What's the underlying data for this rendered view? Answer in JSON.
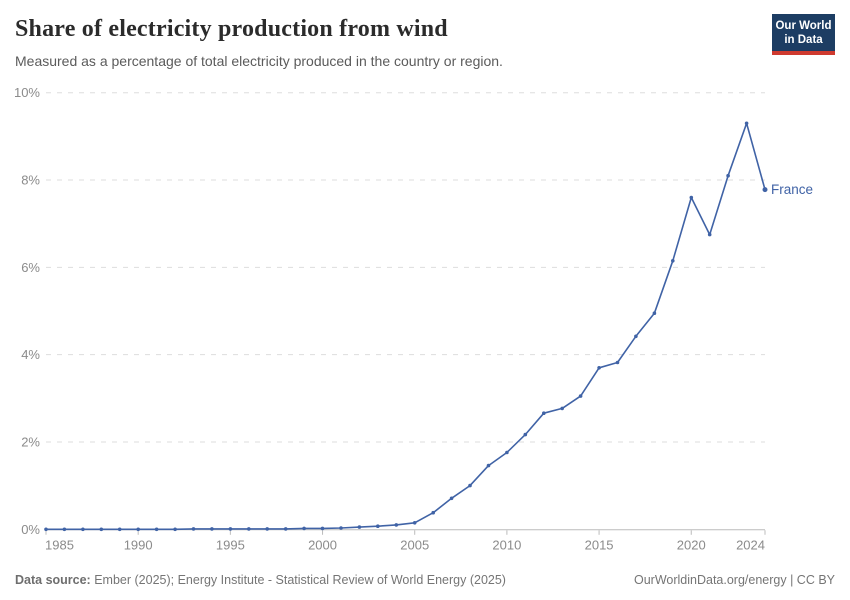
{
  "header": {
    "title": "Share of electricity production from wind",
    "subtitle": "Measured as a percentage of total electricity produced in the country or region.",
    "logo_line1": "Our World",
    "logo_line2": "in Data"
  },
  "footer": {
    "source_label": "Data source:",
    "source_text": " Ember (2025); Energy Institute - Statistical Review of World Energy (2025)",
    "right_text": "OurWorldinData.org/energy | CC BY"
  },
  "colors": {
    "line": "#4063a6",
    "grid": "#dddddd",
    "axis": "#bcbcbc",
    "tick_label": "#8b8b8b",
    "logo_bg": "#1d3d63",
    "logo_red": "#cf3a2f"
  },
  "chart_data": {
    "type": "line",
    "title": "Share of electricity production from wind",
    "subtitle": "Measured as a percentage of total electricity produced in the country or region.",
    "xlabel": "",
    "ylabel": "",
    "xlim": [
      1985,
      2024
    ],
    "ylim": [
      0,
      10
    ],
    "x_ticks": [
      1985,
      1990,
      1995,
      2000,
      2005,
      2010,
      2015,
      2020,
      2024
    ],
    "y_ticks": [
      0,
      2,
      4,
      6,
      8,
      10
    ],
    "y_tick_suffix": "%",
    "grid": "horizontal-dashed",
    "legend_position": "end-of-line-label",
    "series": [
      {
        "name": "France",
        "x": [
          1985,
          1986,
          1987,
          1988,
          1989,
          1990,
          1991,
          1992,
          1993,
          1994,
          1995,
          1996,
          1997,
          1998,
          1999,
          2000,
          2001,
          2002,
          2003,
          2004,
          2005,
          2006,
          2007,
          2008,
          2009,
          2010,
          2011,
          2012,
          2013,
          2014,
          2015,
          2016,
          2017,
          2018,
          2019,
          2020,
          2021,
          2022,
          2023,
          2024
        ],
        "values": [
          0,
          0,
          0,
          0,
          0,
          0,
          0,
          0,
          0.01,
          0.01,
          0.01,
          0.01,
          0.01,
          0.01,
          0.02,
          0.02,
          0.03,
          0.05,
          0.07,
          0.1,
          0.15,
          0.38,
          0.71,
          1.0,
          1.46,
          1.76,
          2.17,
          2.66,
          2.77,
          3.05,
          3.7,
          3.82,
          4.42,
          4.95,
          6.15,
          7.6,
          6.75,
          8.1,
          9.3,
          7.78
        ]
      }
    ]
  }
}
